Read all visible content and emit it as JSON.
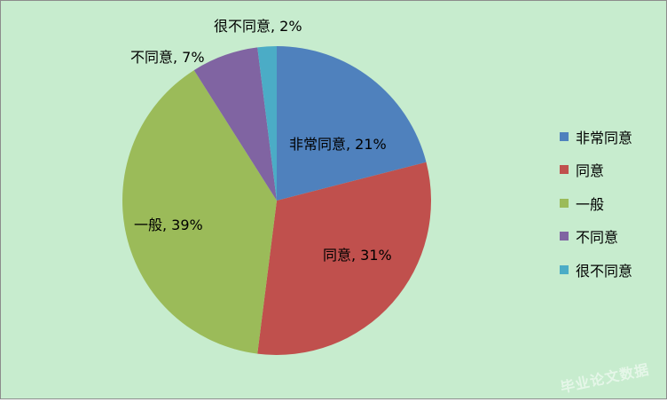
{
  "chart_data": {
    "type": "pie",
    "title": "",
    "legend_position": "right",
    "start_angle": "top",
    "direction": "clockwise",
    "slices": [
      {
        "name": "非常同意",
        "value": 21,
        "label": "非常同意, 21%",
        "color": "#4f81bd"
      },
      {
        "name": "同意",
        "value": 31,
        "label": "同意, 31%",
        "color": "#c0504d"
      },
      {
        "name": "一般",
        "value": 39,
        "label": "一般, 39%",
        "color": "#9bbb59"
      },
      {
        "name": "不同意",
        "value": 7,
        "label": "不同意, 7%",
        "color": "#8064a2"
      },
      {
        "name": "很不同意",
        "value": 2,
        "label": "很不同意, 2%",
        "color": "#4bacc6"
      }
    ]
  },
  "watermark": {
    "text": "毕业论文数据网"
  },
  "colors": {
    "background": "#c7ecce"
  }
}
